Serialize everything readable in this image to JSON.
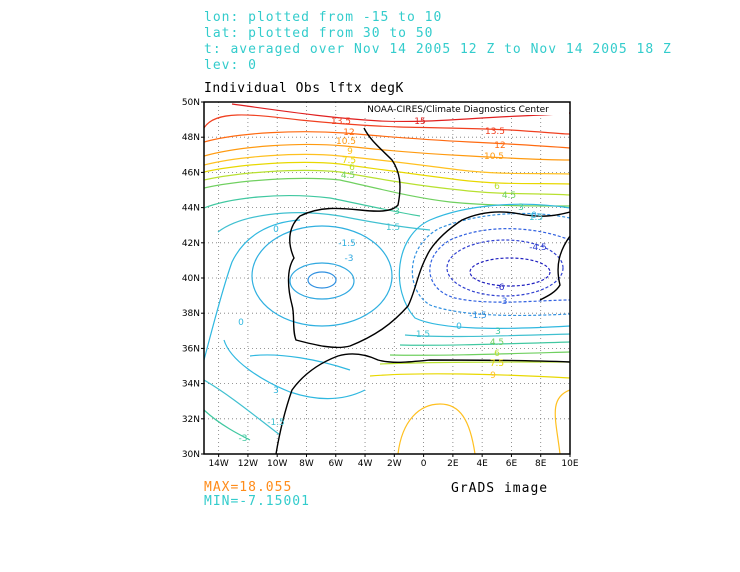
{
  "header": {
    "lon_line": "lon: plotted from -15 to 10",
    "lat_line": "lat: plotted from 30 to 50",
    "time_line": "t: averaged over Nov 14 2005 12 Z to Nov 14 2005 18 Z",
    "lev_line": "lev: 0"
  },
  "plot": {
    "title": "Individual Obs lftx degK",
    "credit": "NOAA-CIRES/Climate Diagnostics Center",
    "lon_ticks": [
      "14W",
      "12W",
      "10W",
      "8W",
      "6W",
      "4W",
      "2W",
      "0",
      "2E",
      "4E",
      "6E",
      "8E",
      "10E"
    ],
    "lat_ticks": [
      "30N",
      "32N",
      "34N",
      "36N",
      "38N",
      "40N",
      "42N",
      "44N",
      "46N",
      "48N",
      "50N"
    ]
  },
  "stats": {
    "max_label": "MAX=18.055",
    "min_label": "MIN=-7.15001"
  },
  "footer": {
    "grads_label": "GrADS image"
  },
  "colors": {
    "header_text": "#33cccc",
    "max_text": "#ff8c1a",
    "min_text": "#33cccc"
  },
  "contour_labels": [
    {
      "text": "15"
    },
    {
      "text": "13.5"
    },
    {
      "text": "12"
    },
    {
      "text": "10.5"
    },
    {
      "text": "9"
    },
    {
      "text": "7.5"
    },
    {
      "text": "6"
    },
    {
      "text": "4.5"
    },
    {
      "text": "3"
    },
    {
      "text": "1.5"
    },
    {
      "text": "0"
    },
    {
      "text": "-1.5"
    },
    {
      "text": "-3"
    },
    {
      "text": "-4.5"
    },
    {
      "text": "-6"
    },
    {
      "text": "13.5"
    },
    {
      "text": "12"
    },
    {
      "text": "10.5"
    },
    {
      "text": "6"
    },
    {
      "text": "4.5"
    },
    {
      "text": "3"
    },
    {
      "text": "1.5"
    },
    {
      "text": "0"
    },
    {
      "text": "-1.5"
    },
    {
      "text": "-3"
    },
    {
      "text": "0"
    },
    {
      "text": "0"
    },
    {
      "text": "-1.5"
    },
    {
      "text": "-3"
    },
    {
      "text": "3"
    },
    {
      "text": "4.5"
    },
    {
      "text": "6"
    },
    {
      "text": "7.5"
    },
    {
      "text": "9"
    },
    {
      "text": "1.5"
    },
    {
      "text": "3"
    }
  ]
}
